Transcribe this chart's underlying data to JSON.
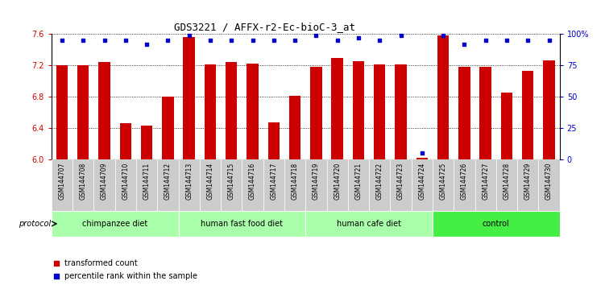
{
  "title": "GDS3221 / AFFX-r2-Ec-bioC-3_at",
  "samples": [
    "GSM144707",
    "GSM144708",
    "GSM144709",
    "GSM144710",
    "GSM144711",
    "GSM144712",
    "GSM144713",
    "GSM144714",
    "GSM144715",
    "GSM144716",
    "GSM144717",
    "GSM144718",
    "GSM144719",
    "GSM144720",
    "GSM144721",
    "GSM144722",
    "GSM144723",
    "GSM144724",
    "GSM144725",
    "GSM144726",
    "GSM144727",
    "GSM144728",
    "GSM144729",
    "GSM144730"
  ],
  "bar_values": [
    7.2,
    7.2,
    7.25,
    6.46,
    6.43,
    6.8,
    7.56,
    7.21,
    7.25,
    7.22,
    6.48,
    6.81,
    7.18,
    7.3,
    7.26,
    7.21,
    7.21,
    6.02,
    7.58,
    7.18,
    7.18,
    6.85,
    7.13,
    7.27
  ],
  "percentile_values": [
    95,
    95,
    95,
    95,
    92,
    95,
    99,
    95,
    95,
    95,
    95,
    95,
    99,
    95,
    97,
    95,
    99,
    5,
    99,
    92,
    95,
    95,
    95,
    95
  ],
  "bar_color": "#cc0000",
  "percentile_color": "#0000cc",
  "ylim_left": [
    6.0,
    7.6
  ],
  "ylim_right": [
    0,
    100
  ],
  "yticks_left": [
    6.0,
    6.4,
    6.8,
    7.2,
    7.6
  ],
  "yticks_right": [
    0,
    25,
    50,
    75,
    100
  ],
  "ytick_labels_right": [
    "0",
    "25",
    "50",
    "75",
    "100%"
  ],
  "groups": [
    {
      "label": "chimpanzee diet",
      "start": 0,
      "end": 5,
      "color": "#aaffaa"
    },
    {
      "label": "human fast food diet",
      "start": 6,
      "end": 11,
      "color": "#aaffaa"
    },
    {
      "label": "human cafe diet",
      "start": 12,
      "end": 17,
      "color": "#aaffaa"
    },
    {
      "label": "control",
      "start": 18,
      "end": 23,
      "color": "#44ee44"
    }
  ],
  "protocol_label": "protocol",
  "legend_items": [
    {
      "color": "#cc0000",
      "label": "transformed count"
    },
    {
      "color": "#0000cc",
      "label": "percentile rank within the sample"
    }
  ],
  "plot_bg_color": "#ffffff",
  "tick_bg_color": "#cccccc",
  "fig_bg_color": "#ffffff"
}
